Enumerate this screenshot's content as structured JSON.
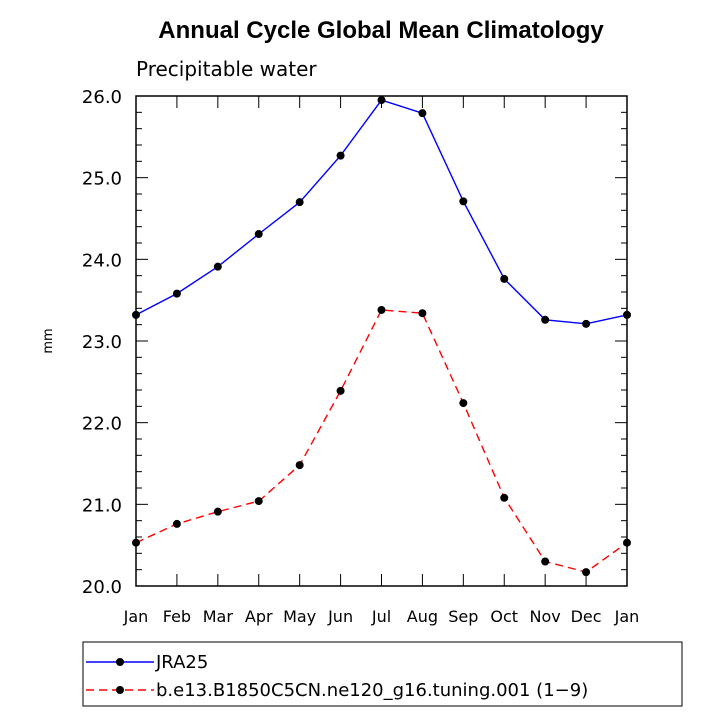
{
  "chart_data": {
    "type": "line",
    "title": "Annual Cycle Global Mean Climatology",
    "subtitle": "Precipitable water",
    "xlabel": "",
    "ylabel": "mm",
    "ylim": [
      20.0,
      26.0
    ],
    "ytick_labels": [
      "20.0",
      "21.0",
      "22.0",
      "23.0",
      "24.0",
      "25.0",
      "26.0"
    ],
    "categories": [
      "Jan",
      "Feb",
      "Mar",
      "Apr",
      "May",
      "Jun",
      "Jul",
      "Aug",
      "Sep",
      "Oct",
      "Nov",
      "Dec",
      "Jan"
    ],
    "grid": false,
    "legend_position": "bottom",
    "series": [
      {
        "name": "JRA25",
        "color": "#0000ff",
        "line_style": "solid",
        "marker": "filled-circle",
        "values": [
          23.32,
          23.58,
          23.91,
          24.31,
          24.7,
          25.27,
          25.95,
          25.79,
          24.71,
          23.76,
          23.26,
          23.21,
          23.32
        ]
      },
      {
        "name": "b.e13.B1850C5CN.ne120_g16.tuning.001 (1−9)",
        "color": "#ff0000",
        "line_style": "dashed",
        "marker": "filled-circle",
        "values": [
          20.53,
          20.76,
          20.91,
          21.04,
          21.48,
          22.39,
          23.38,
          23.34,
          22.24,
          21.08,
          20.3,
          20.17,
          20.53
        ]
      }
    ]
  }
}
